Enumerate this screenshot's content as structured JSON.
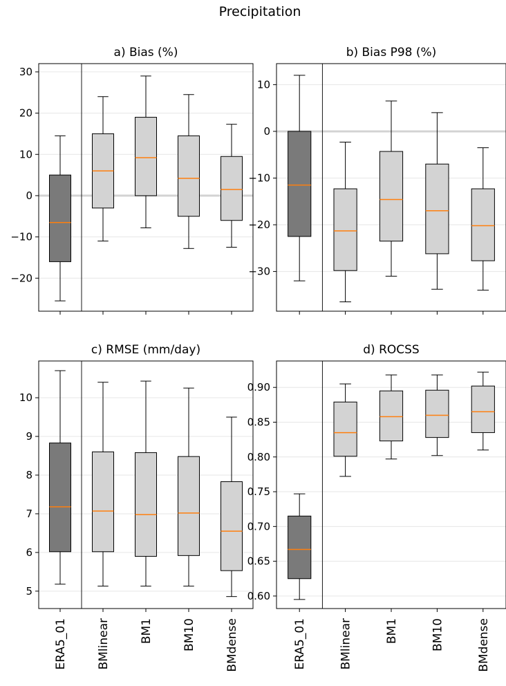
{
  "figure": {
    "title": "Precipitation"
  },
  "chart_data": [
    {
      "type": "boxplot",
      "title": "a) Bias (%)",
      "categories": [
        "ERA5_01",
        "BMlinear",
        "BM1",
        "BM10",
        "BMdense"
      ],
      "boxes": [
        {
          "whislo": -25.5,
          "q1": -16.0,
          "med": -6.5,
          "q3": 5.0,
          "whishi": 14.5
        },
        {
          "whislo": -11.0,
          "q1": -3.0,
          "med": 6.0,
          "q3": 15.0,
          "whishi": 24.0
        },
        {
          "whislo": -7.8,
          "q1": 0.0,
          "med": 9.2,
          "q3": 19.0,
          "whishi": 29.0
        },
        {
          "whislo": -12.8,
          "q1": -5.0,
          "med": 4.2,
          "q3": 14.5,
          "whishi": 24.5
        },
        {
          "whislo": -12.5,
          "q1": -6.0,
          "med": 1.5,
          "q3": 9.5,
          "whishi": 17.3
        }
      ],
      "ylim": [
        -28.0,
        32.0
      ],
      "yticks": [
        -20,
        -10,
        0,
        10,
        20,
        30
      ],
      "reference_line": 0,
      "separator_after": 1,
      "grid": true,
      "colors": {
        "first_box": "#7a7a7a",
        "other_boxes": "#d3d3d3",
        "median": "#ff7f0e",
        "reference": "#d3d3d3"
      }
    },
    {
      "type": "boxplot",
      "title": "b) Bias P98 (%)",
      "categories": [
        "ERA5_01",
        "BMlinear",
        "BM1",
        "BM10",
        "BMdense"
      ],
      "boxes": [
        {
          "whislo": -32.0,
          "q1": -22.5,
          "med": -11.5,
          "q3": 0.0,
          "whishi": 12.0
        },
        {
          "whislo": -36.5,
          "q1": -29.8,
          "med": -21.3,
          "q3": -12.3,
          "whishi": -2.3
        },
        {
          "whislo": -31.0,
          "q1": -23.5,
          "med": -14.6,
          "q3": -4.3,
          "whishi": 6.5
        },
        {
          "whislo": -33.8,
          "q1": -26.2,
          "med": -17.0,
          "q3": -7.0,
          "whishi": 4.0
        },
        {
          "whislo": -34.0,
          "q1": -27.7,
          "med": -20.2,
          "q3": -12.3,
          "whishi": -3.5
        }
      ],
      "ylim": [
        -38.5,
        14.5
      ],
      "yticks": [
        -30,
        -20,
        -10,
        0,
        10
      ],
      "reference_line": 0,
      "separator_after": 1,
      "grid": true,
      "colors": {
        "first_box": "#7a7a7a",
        "other_boxes": "#d3d3d3",
        "median": "#ff7f0e",
        "reference": "#d3d3d3"
      }
    },
    {
      "type": "boxplot",
      "title": "c) RMSE (mm/day)",
      "categories": [
        "ERA5_01",
        "BMlinear",
        "BM1",
        "BM10",
        "BMdense"
      ],
      "boxes": [
        {
          "whislo": 5.18,
          "q1": 6.02,
          "med": 7.18,
          "q3": 8.83,
          "whishi": 10.7
        },
        {
          "whislo": 5.13,
          "q1": 6.02,
          "med": 7.07,
          "q3": 8.6,
          "whishi": 10.4
        },
        {
          "whislo": 5.13,
          "q1": 5.9,
          "med": 6.98,
          "q3": 8.58,
          "whishi": 10.43
        },
        {
          "whislo": 5.13,
          "q1": 5.92,
          "med": 7.02,
          "q3": 8.48,
          "whishi": 10.25
        },
        {
          "whislo": 4.86,
          "q1": 5.53,
          "med": 6.55,
          "q3": 7.83,
          "whishi": 9.5
        }
      ],
      "ylim": [
        4.55,
        10.95
      ],
      "yticks": [
        5,
        6,
        7,
        8,
        9,
        10
      ],
      "separator_after": 1,
      "grid": true,
      "colors": {
        "first_box": "#7a7a7a",
        "other_boxes": "#d3d3d3",
        "median": "#ff7f0e"
      }
    },
    {
      "type": "boxplot",
      "title": "d) ROCSS",
      "categories": [
        "ERA5_01",
        "BMlinear",
        "BM1",
        "BM10",
        "BMdense"
      ],
      "boxes": [
        {
          "whislo": 0.595,
          "q1": 0.625,
          "med": 0.667,
          "q3": 0.715,
          "whishi": 0.747
        },
        {
          "whislo": 0.772,
          "q1": 0.801,
          "med": 0.835,
          "q3": 0.879,
          "whishi": 0.905
        },
        {
          "whislo": 0.797,
          "q1": 0.823,
          "med": 0.858,
          "q3": 0.895,
          "whishi": 0.918
        },
        {
          "whislo": 0.802,
          "q1": 0.828,
          "med": 0.86,
          "q3": 0.896,
          "whishi": 0.918
        },
        {
          "whislo": 0.81,
          "q1": 0.835,
          "med": 0.865,
          "q3": 0.902,
          "whishi": 0.922
        }
      ],
      "ylim": [
        0.582,
        0.938
      ],
      "yticks": [
        0.6,
        0.65,
        0.7,
        0.75,
        0.8,
        0.85,
        0.9
      ],
      "ytick_labels": [
        "0.60",
        "0.65",
        "0.70",
        "0.75",
        "0.80",
        "0.85",
        "0.90"
      ],
      "separator_after": 1,
      "grid": true,
      "colors": {
        "first_box": "#7a7a7a",
        "other_boxes": "#d3d3d3",
        "median": "#ff7f0e"
      }
    }
  ]
}
